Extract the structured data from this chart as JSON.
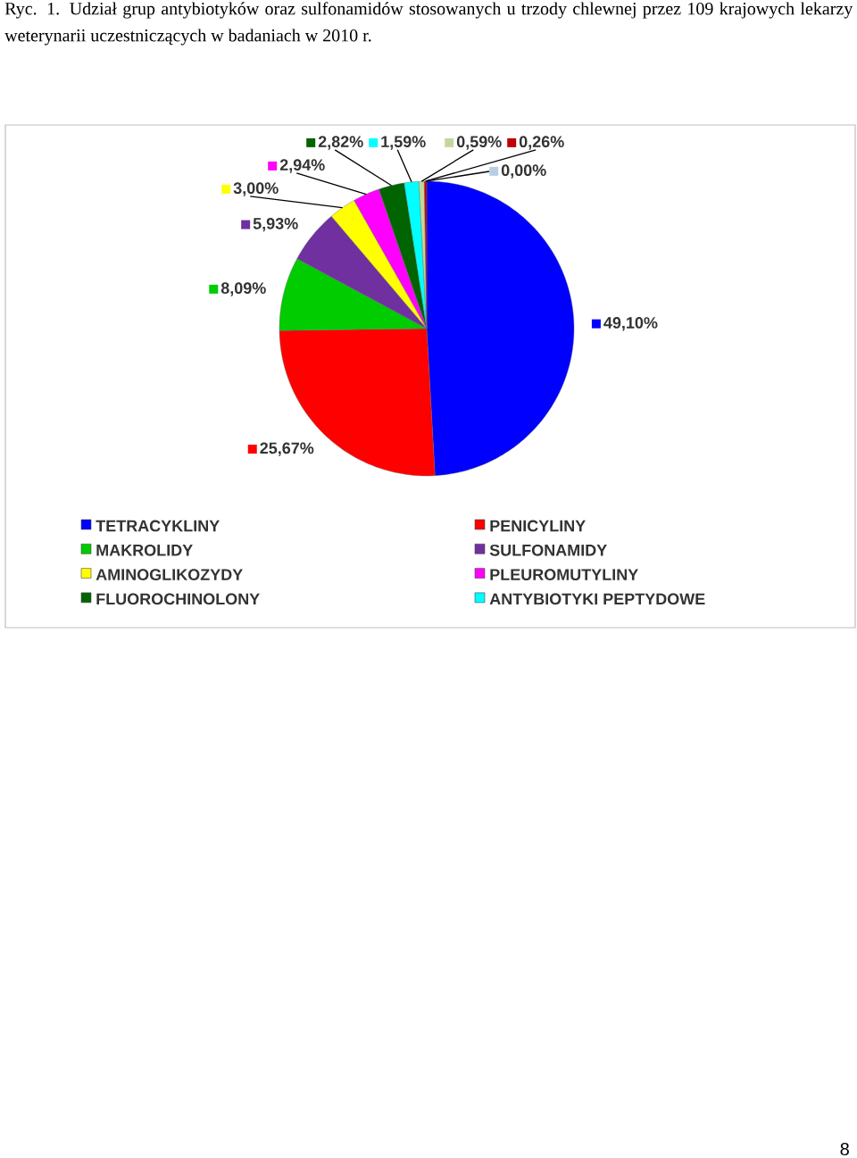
{
  "chart_data": {
    "type": "pie",
    "title": "Ryc. 1. Udział grup antybiotyków oraz sulfonamidów stosowanych u trzody chlewnej przez 109 krajowych lekarzy weterynarii uczestniczących w badaniach w 2010 r.",
    "categories": [
      "TETRACYKLINY",
      "PENICYLINY",
      "MAKROLIDY",
      "SULFONAMIDY",
      "AMINOGLIKOZYDY",
      "PLEUROMUTYLINY",
      "FLUOROCHINOLONY",
      "ANTYBIOTYKI PEPTYDOWE",
      null,
      null,
      null
    ],
    "values": [
      49.1,
      25.67,
      8.09,
      5.93,
      3.0,
      2.94,
      2.82,
      1.59,
      0.59,
      0.26,
      0.0
    ],
    "value_labels": [
      "49,10%",
      "25,67%",
      "8,09%",
      "5,93%",
      "3,00%",
      "2,94%",
      "2,82%",
      "1,59%",
      "0,59%",
      "0,26%",
      "0,00%"
    ],
    "colors": [
      "#0000ff",
      "#ff0000",
      "#00cc00",
      "#7030a0",
      "#ffff00",
      "#ff00ff",
      "#006400",
      "#00ffff",
      "#c4d79b",
      "#c00000",
      "#b9cde5"
    ],
    "legend": "bottom",
    "annotations": [
      "8"
    ]
  }
}
